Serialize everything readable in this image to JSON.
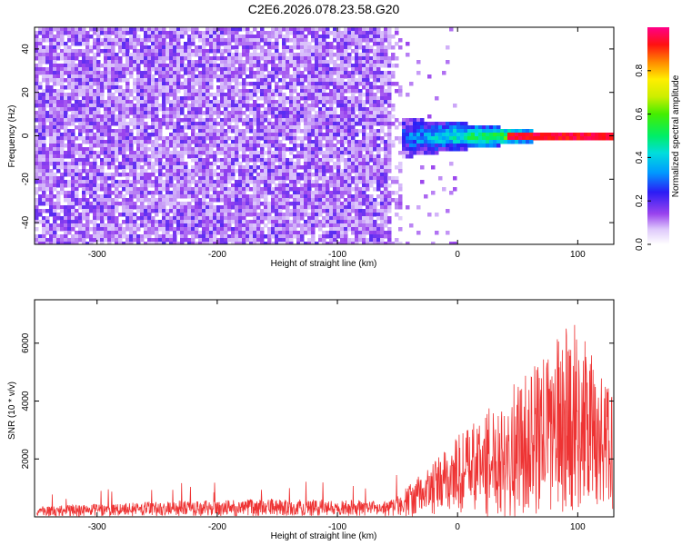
{
  "title": "C2E6.2026.078.23.58.G20",
  "colors": {
    "snr_line": "#ee3333",
    "spectrum_low": "#9a44ee",
    "track": "#dd2222"
  },
  "chart_data": [
    {
      "type": "heatmap",
      "name": "spectrogram",
      "xlabel": "Height of straight line (km)",
      "ylabel": "Frequency (Hz)",
      "xlim": [
        -352,
        130
      ],
      "ylim": [
        -50,
        50
      ],
      "xticks": [
        -300,
        -200,
        -100,
        0,
        100
      ],
      "yticks": [
        -40,
        -20,
        0,
        20,
        40
      ],
      "xtick_labels": [
        "-300",
        "-200",
        "-100",
        "0",
        "100"
      ],
      "ytick_labels": [
        "-40",
        "-20",
        "0",
        "20",
        "40"
      ],
      "description_regions": [
        {
          "x": [
            -352,
            -52
          ],
          "y": [
            -50,
            50
          ],
          "amplitude": 0.12
        },
        {
          "x": [
            -55,
            130
          ],
          "y": [
            -9,
            7
          ],
          "amplitude": 0.55
        },
        {
          "x": [
            50,
            130
          ],
          "y": [
            -1,
            1
          ],
          "amplitude": 0.95
        }
      ],
      "colorbar": {
        "label": "Normalized spectral amplitude",
        "range": [
          0,
          1
        ],
        "ticks": [
          0.0,
          0.2,
          0.4,
          0.6,
          0.8
        ],
        "tick_labels": [
          "0.0",
          "0.2",
          "0.4",
          "0.6",
          "0.8"
        ]
      }
    },
    {
      "type": "line",
      "name": "snr",
      "xlabel": "Height of straight line (km)",
      "ylabel": "SNR (10 * v/v)",
      "xlim": [
        -352,
        130
      ],
      "ylim": [
        0,
        7500
      ],
      "xticks": [
        -300,
        -200,
        -100,
        0,
        100
      ],
      "yticks": [
        2000,
        4000,
        6000
      ],
      "xtick_labels": [
        "-300",
        "-200",
        "-100",
        "0",
        "100"
      ],
      "ytick_labels": [
        "2000",
        "4000",
        "6000"
      ],
      "series": [
        {
          "x": [
            -350,
            -300,
            -250,
            -200,
            -150,
            -100,
            -60,
            -40,
            -20,
            0,
            20,
            40,
            60,
            80,
            95,
            110,
            128
          ],
          "y": [
            350,
            420,
            520,
            550,
            600,
            560,
            500,
            900,
            1500,
            2300,
            2800,
            3500,
            4000,
            4800,
            5600,
            4600,
            3600
          ]
        }
      ]
    }
  ]
}
